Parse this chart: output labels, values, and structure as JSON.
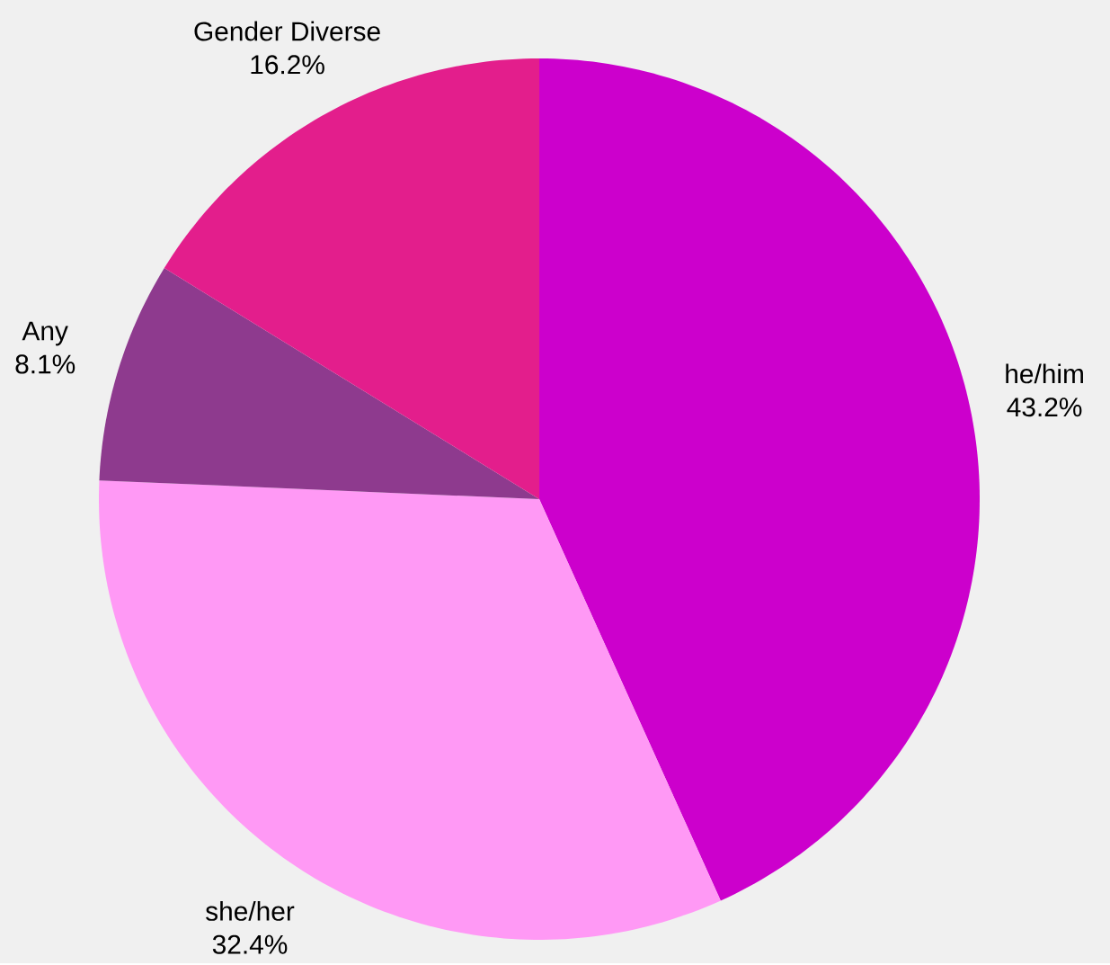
{
  "chart_data": {
    "type": "pie",
    "categories": [
      "he/him",
      "she/her",
      "Any",
      "Gender Diverse"
    ],
    "values": [
      43.2,
      32.4,
      8.1,
      16.2
    ],
    "colors": [
      "#cc00cc",
      "#ff99f5",
      "#8e3a8e",
      "#e31e8c"
    ],
    "value_labels": [
      "43.2%",
      "32.4%",
      "8.1%",
      "16.2%"
    ]
  }
}
